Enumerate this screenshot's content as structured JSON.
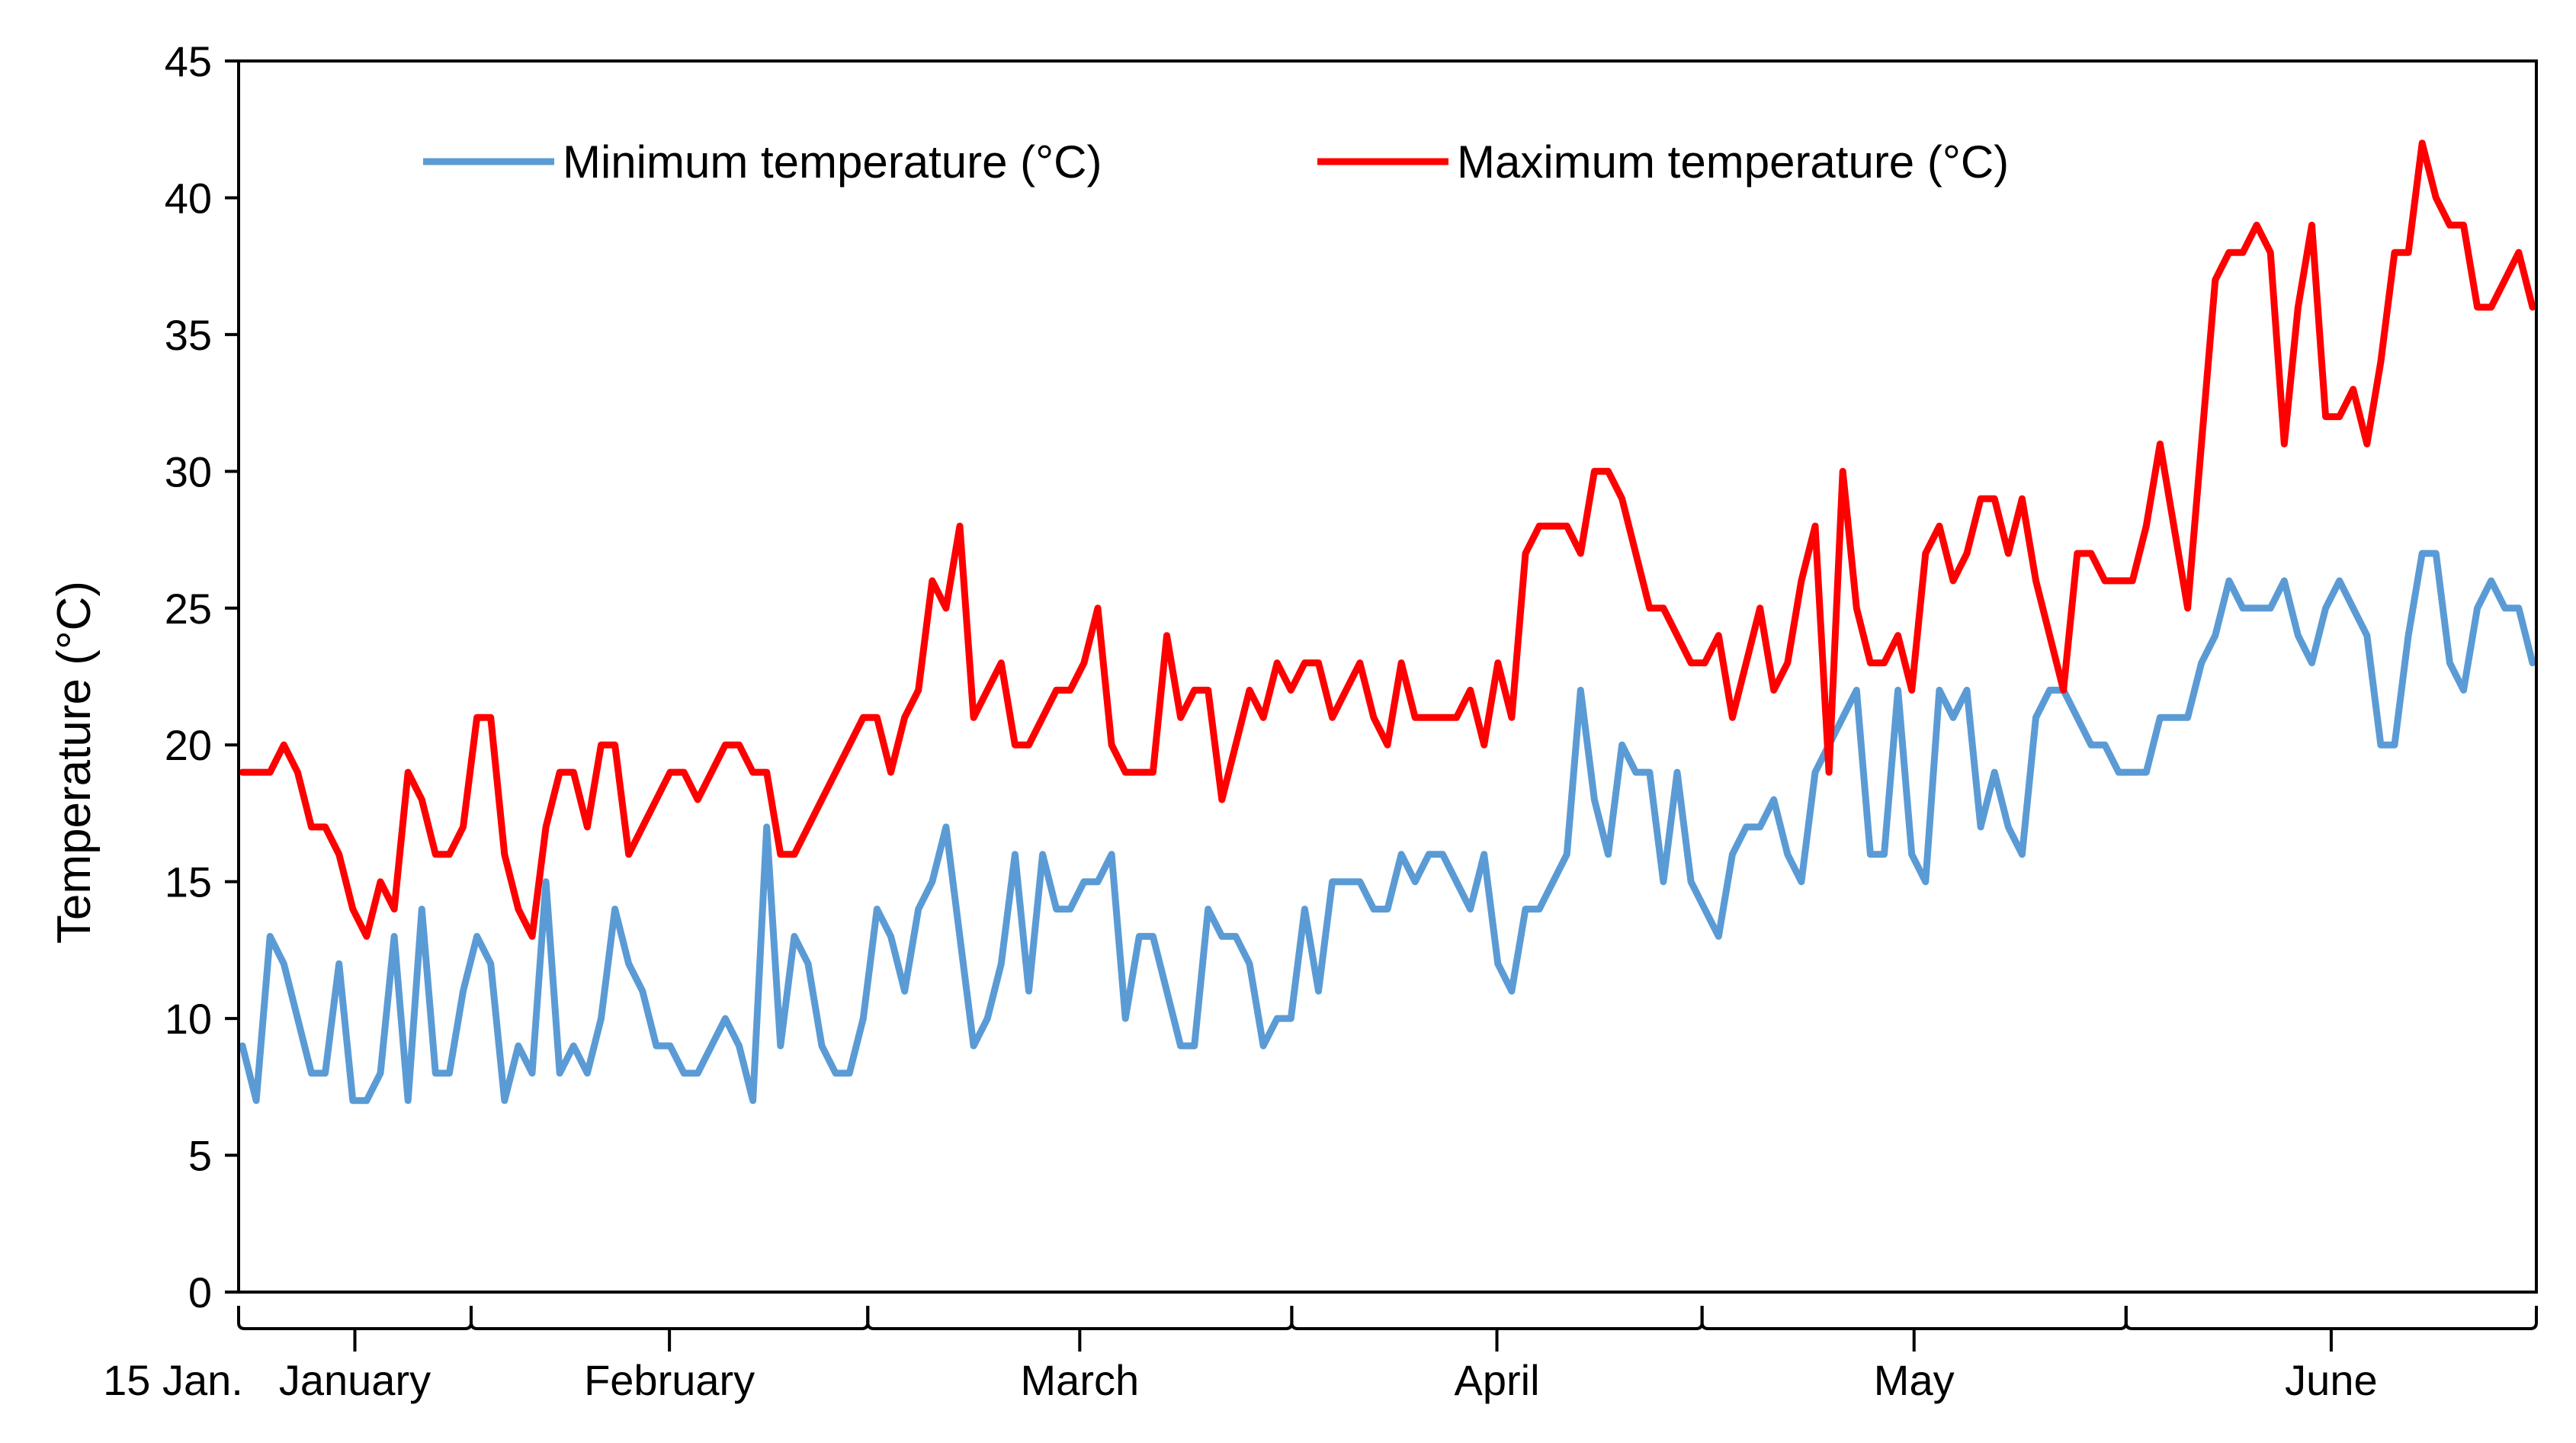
{
  "chart_data": {
    "type": "line",
    "title": "",
    "xlabel": "",
    "ylabel": "Temperature (°C)",
    "ylim": [
      0,
      45
    ],
    "yticks": [
      0,
      5,
      10,
      15,
      20,
      25,
      30,
      35,
      40,
      45
    ],
    "ytick_labels": [
      "0",
      "5",
      "10",
      "15",
      "20",
      "25",
      "30",
      "35",
      "40",
      "45"
    ],
    "grid": false,
    "legend": "top",
    "x_start_label": "15 Jan.",
    "months": [
      {
        "label": "January",
        "days": 17
      },
      {
        "label": "February",
        "days": 29
      },
      {
        "label": "March",
        "days": 31
      },
      {
        "label": "April",
        "days": 30
      },
      {
        "label": "May",
        "days": 31
      },
      {
        "label": "June",
        "days": 30
      }
    ],
    "series": [
      {
        "name": "Minimum temperature (°C)",
        "color": "#5b9bd5",
        "values": [
          9,
          7,
          13,
          12,
          10,
          8,
          8,
          12,
          7,
          7,
          8,
          13,
          7,
          14,
          8,
          8,
          11,
          13,
          12,
          7,
          9,
          8,
          15,
          8,
          9,
          8,
          10,
          14,
          12,
          11,
          9,
          9,
          8,
          8,
          9,
          10,
          9,
          7,
          17,
          9,
          13,
          12,
          9,
          8,
          8,
          10,
          14,
          13,
          11,
          14,
          15,
          17,
          13,
          9,
          10,
          12,
          16,
          11,
          16,
          14,
          14,
          15,
          15,
          16,
          10,
          13,
          13,
          11,
          9,
          9,
          14,
          13,
          13,
          12,
          9,
          10,
          10,
          14,
          11,
          15,
          15,
          15,
          14,
          14,
          16,
          15,
          16,
          16,
          15,
          14,
          16,
          12,
          11,
          14,
          14,
          15,
          16,
          22,
          18,
          16,
          20,
          19,
          19,
          15,
          19,
          15,
          14,
          13,
          16,
          17,
          17,
          18,
          16,
          15,
          19,
          20,
          21,
          22,
          16,
          16,
          22,
          16,
          15,
          22,
          21,
          22,
          17,
          19,
          17,
          16,
          21,
          22,
          22,
          21,
          20,
          20,
          19,
          19,
          19,
          21,
          21,
          21,
          23,
          24,
          26,
          25,
          25,
          25,
          26,
          24,
          23,
          25,
          26,
          25,
          24,
          20,
          20,
          24,
          27,
          27,
          23,
          22,
          25,
          26,
          25,
          25,
          23
        ]
      },
      {
        "name": "Maximum temperature (°C)",
        "color": "#ff0000",
        "values": [
          19,
          19,
          19,
          20,
          19,
          17,
          17,
          16,
          14,
          13,
          15,
          14,
          19,
          18,
          16,
          16,
          17,
          21,
          21,
          16,
          14,
          13,
          17,
          19,
          19,
          17,
          20,
          20,
          16,
          17,
          18,
          19,
          19,
          18,
          19,
          20,
          20,
          19,
          19,
          16,
          16,
          17,
          18,
          19,
          20,
          21,
          21,
          19,
          21,
          22,
          26,
          25,
          28,
          21,
          22,
          23,
          20,
          20,
          21,
          22,
          22,
          23,
          25,
          20,
          19,
          19,
          19,
          24,
          21,
          22,
          22,
          18,
          20,
          22,
          21,
          23,
          22,
          23,
          23,
          21,
          22,
          23,
          21,
          20,
          23,
          21,
          21,
          21,
          21,
          22,
          20,
          23,
          21,
          27,
          28,
          28,
          28,
          27,
          30,
          30,
          29,
          27,
          25,
          25,
          24,
          23,
          23,
          24,
          21,
          23,
          25,
          22,
          23,
          26,
          28,
          19,
          30,
          25,
          23,
          23,
          24,
          22,
          27,
          28,
          26,
          27,
          29,
          29,
          27,
          29,
          26,
          24,
          22,
          27,
          27,
          26,
          26,
          26,
          28,
          31,
          28,
          25,
          31,
          37,
          38,
          38,
          39,
          38,
          31,
          36,
          39,
          32,
          32,
          33,
          31,
          34,
          38,
          38,
          42,
          40,
          39,
          39,
          36,
          36,
          37,
          38,
          36
        ]
      }
    ]
  }
}
